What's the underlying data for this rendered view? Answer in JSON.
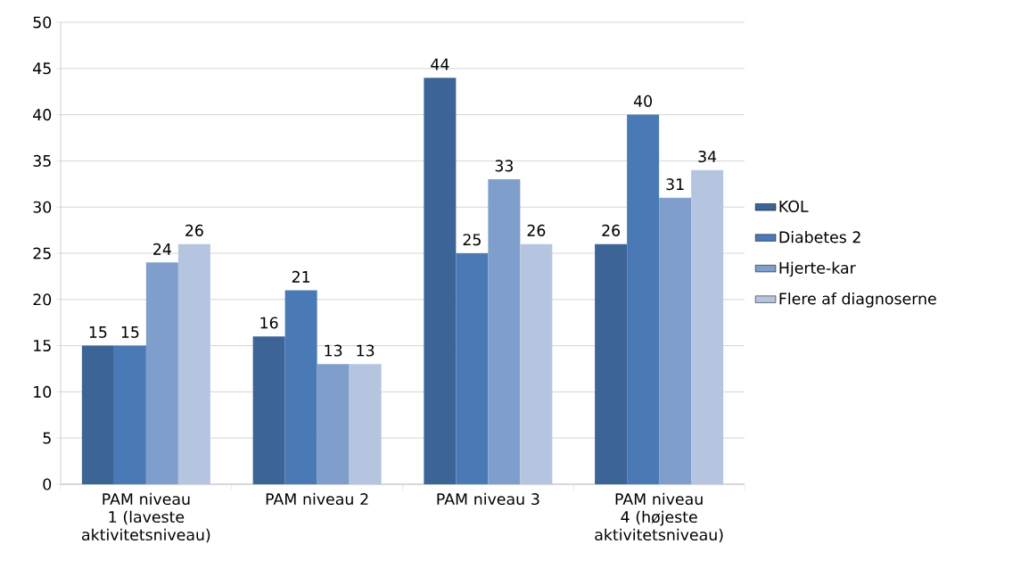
{
  "chart_data": {
    "type": "bar",
    "categories": [
      "PAM niveau 1 (laveste aktivitetsniveau)",
      "PAM niveau 2",
      "PAM niveau 3",
      "PAM niveau 4 (højeste aktivitetsniveau)"
    ],
    "series": [
      {
        "name": "KOL",
        "color": "#3c6496",
        "values": [
          15,
          16,
          44,
          26
        ]
      },
      {
        "name": "Diabetes 2",
        "color": "#4a7ab5",
        "values": [
          15,
          21,
          25,
          40
        ]
      },
      {
        "name": "Hjerte-kar",
        "color": "#7f9ecb",
        "values": [
          24,
          13,
          33,
          31
        ]
      },
      {
        "name": "Flere af diagnoserne",
        "color": "#b5c5e0",
        "values": [
          26,
          13,
          26,
          34
        ]
      }
    ],
    "ylim": [
      0,
      50
    ],
    "yticks": [
      0,
      5,
      10,
      15,
      20,
      25,
      30,
      35,
      40,
      45,
      50
    ],
    "grid": "y",
    "legend": "right",
    "data_labels": true
  }
}
